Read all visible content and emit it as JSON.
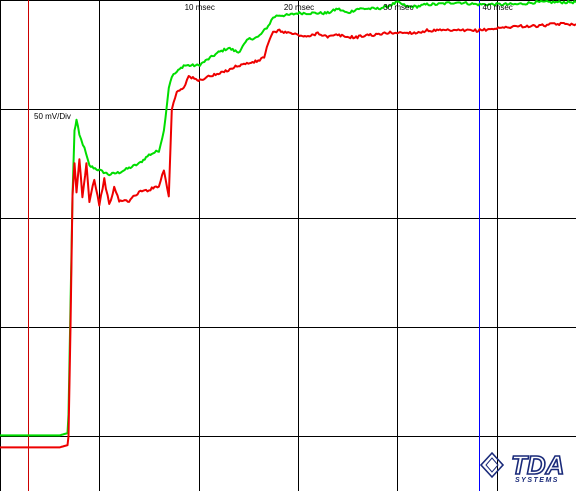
{
  "chart_data": {
    "type": "line",
    "title": "",
    "xlabel": "",
    "ylabel": "",
    "x_unit": "msec",
    "xlim": [
      -10,
      48
    ],
    "ylim": [
      -25,
      200
    ],
    "grid": true,
    "scale_label": "50 mV/Div",
    "x_tick_labels": [
      {
        "x": 10,
        "label": "10 msec"
      },
      {
        "x": 20,
        "label": "20 msec"
      },
      {
        "x": 30,
        "label": "30 msec"
      },
      {
        "x": 40,
        "label": "40 msec"
      }
    ],
    "cursors": [
      {
        "x": -7.2,
        "color": "#cc0000"
      },
      {
        "x": 38.2,
        "color": "#0000ff"
      }
    ],
    "series": [
      {
        "color": "#00dd00",
        "x": [
          -10,
          -4,
          -3.2,
          -3.1,
          -2.9,
          -2.7,
          -2.5,
          -2.3,
          -2,
          -1.5,
          -1,
          0,
          1,
          2,
          3,
          4,
          5,
          6,
          6.5,
          7,
          7.3,
          7.8,
          8.5,
          10,
          11,
          12,
          13,
          14,
          15,
          16,
          16.6,
          17,
          17.5,
          18,
          19,
          20,
          21,
          22,
          23,
          24,
          25,
          26,
          27,
          28,
          29,
          30,
          31,
          32,
          33,
          34,
          36,
          38,
          40,
          42,
          44,
          46,
          48
        ],
        "y": [
          0.5,
          0.5,
          1.5,
          10,
          60,
          110,
          140,
          145,
          138,
          132,
          124,
          122,
          120,
          121,
          123,
          125,
          129,
          131,
          140,
          160,
          165,
          167,
          170,
          170,
          173,
          176,
          178,
          176,
          182,
          183,
          186,
          188,
          192,
          193,
          193,
          194,
          194,
          194,
          194,
          196,
          194,
          196,
          196,
          196,
          197,
          199,
          197,
          197,
          198,
          198,
          199,
          198,
          198,
          198,
          199,
          199,
          199
        ]
      },
      {
        "color": "#ee0000",
        "x": [
          -10,
          -4,
          -3.2,
          -3.1,
          -2.9,
          -2.7,
          -2.5,
          -2.3,
          -2,
          -1.7,
          -1.3,
          -1,
          -0.5,
          0,
          0.5,
          1,
          1.5,
          2,
          3,
          4,
          5,
          6,
          6.5,
          7,
          7.3,
          7.8,
          8.5,
          9,
          10,
          11,
          12,
          13,
          14,
          15,
          16,
          16.6,
          17,
          17.5,
          18,
          19,
          20,
          21,
          22,
          23,
          24,
          25,
          26,
          27,
          28,
          29,
          30,
          31,
          32,
          33,
          34,
          36,
          38,
          40,
          42,
          44,
          46,
          48
        ],
        "y": [
          -5,
          -5,
          -4,
          0,
          50,
          110,
          125,
          112,
          127,
          110,
          125,
          108,
          118,
          106,
          118,
          106,
          114,
          108,
          108,
          112,
          113,
          115,
          122,
          110,
          150,
          158,
          160,
          165,
          163,
          165,
          166,
          168,
          170,
          171,
          172,
          174,
          180,
          185,
          186,
          185,
          184,
          183,
          185,
          183,
          184,
          183,
          183,
          184,
          184,
          185,
          185,
          185,
          185,
          186,
          186,
          186,
          186,
          187,
          188,
          188,
          189,
          189
        ]
      }
    ]
  },
  "logo": {
    "main_text": "TDA",
    "sub_text": "SYSTEMS",
    "color": "#1a2a7a"
  }
}
